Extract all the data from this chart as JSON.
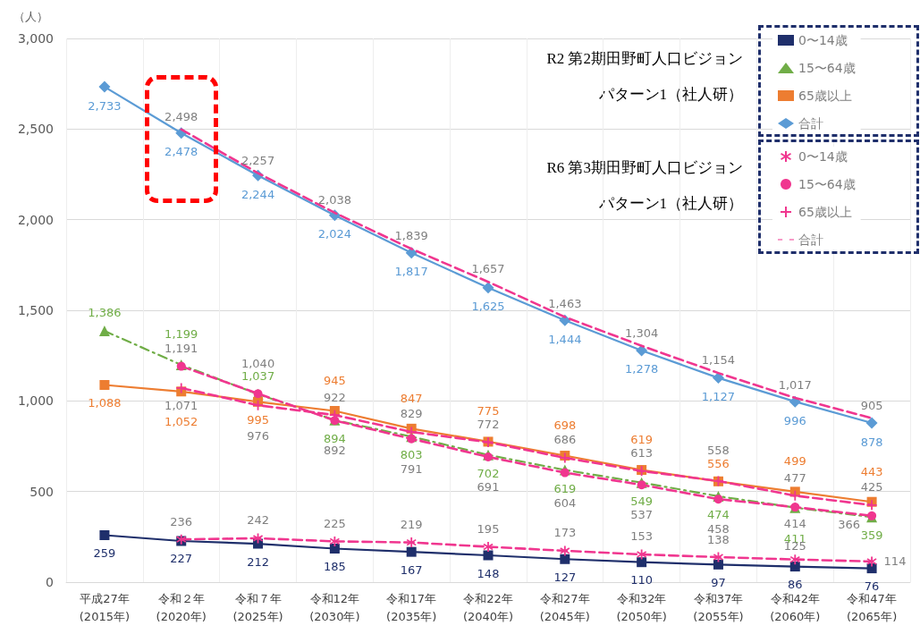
{
  "chart_data": {
    "type": "line",
    "ylabel": "（人）",
    "categories": [
      "平成27年\n(2015年)",
      "令和２年\n(2020年)",
      "令和７年\n(2025年)",
      "令和12年\n(2030年)",
      "令和17年\n(2035年)",
      "令和22年\n(2040年)",
      "令和27年\n(2045年)",
      "令和32年\n(2050年)",
      "令和37年\n(2055年)",
      "令和42年\n(2060年)",
      "令和47年\n(2065年)"
    ],
    "series": [
      {
        "name": "0〜14歳",
        "color": "#1f2f6b",
        "marker": "square",
        "line_style": "solid",
        "values": [
          259,
          227,
          212,
          185,
          167,
          148,
          127,
          110,
          97,
          86,
          76
        ],
        "value_labels": [
          "259",
          "227",
          "212",
          "185",
          "167",
          "148",
          "127",
          "110",
          "97",
          "86",
          "76"
        ]
      },
      {
        "name": "15〜64歳",
        "color": "#70ad47",
        "marker": "triangle",
        "line_style": "dashed",
        "values": [
          1386,
          1199,
          1037,
          894,
          803,
          702,
          619,
          549,
          474,
          411,
          359
        ],
        "value_labels": [
          "1,386",
          "1,199",
          "1,037",
          "894",
          "803",
          "702",
          "619",
          "549",
          "474",
          "411",
          "359"
        ]
      },
      {
        "name": "65歳以上",
        "color": "#ed7d31",
        "marker": "square",
        "line_style": "solid",
        "values": [
          1088,
          1052,
          995,
          945,
          847,
          775,
          698,
          619,
          556,
          499,
          443
        ],
        "value_labels": [
          "1,088",
          "1,052",
          "995",
          "945",
          "847",
          "775",
          "698",
          "619",
          "556",
          "499",
          "443"
        ]
      },
      {
        "name": "合計",
        "color": "#5b9bd5",
        "marker": "diamond",
        "line_style": "solid",
        "values": [
          2733,
          2478,
          2244,
          2024,
          1817,
          1625,
          1444,
          1278,
          1127,
          996,
          878
        ],
        "value_labels": [
          "2,733",
          "2,478",
          "2,244",
          "2,024",
          "1,817",
          "1,625",
          "1,444",
          "1,278",
          "1,127",
          "996",
          "878"
        ]
      },
      {
        "name": "0〜14歳",
        "color": "#f0368f",
        "marker": "star",
        "line_style": "dashed",
        "values": [
          null,
          236,
          242,
          225,
          219,
          195,
          173,
          153,
          138,
          125,
          114
        ],
        "value_labels": [
          null,
          "236",
          "242",
          "225",
          "219",
          "195",
          "173",
          "153",
          "138",
          "125",
          "114"
        ]
      },
      {
        "name": "15〜64歳",
        "color": "#f0368f",
        "marker": "circle",
        "line_style": "dashed",
        "values": [
          null,
          1191,
          1040,
          892,
          791,
          691,
          604,
          537,
          458,
          414,
          366
        ],
        "value_labels": [
          null,
          "1,191",
          "1,040",
          "892",
          "791",
          "691",
          "604",
          "537",
          "458",
          "414",
          "366"
        ]
      },
      {
        "name": "65歳以上",
        "color": "#f0368f",
        "marker": "cross",
        "line_style": "dashed",
        "values": [
          null,
          1071,
          976,
          922,
          829,
          772,
          686,
          613,
          558,
          477,
          425
        ],
        "value_labels": [
          null,
          "1,071",
          "976",
          "922",
          "829",
          "772",
          "686",
          "613",
          "558",
          "477",
          "425"
        ]
      },
      {
        "name": "合計",
        "color": "#f0368f",
        "marker": "none",
        "line_style": "dashed",
        "values": [
          null,
          2498,
          2257,
          2038,
          1839,
          1657,
          1463,
          1304,
          1154,
          1017,
          905
        ],
        "value_labels": [
          null,
          "2,498",
          "2,257",
          "2,038",
          "1,839",
          "1,657",
          "1,463",
          "1,304",
          "1,154",
          "1,017",
          "905"
        ]
      }
    ],
    "ylim": [
      0,
      3000
    ],
    "yticks": [
      0,
      500,
      {
        "value": 1000,
        "label": "1,000"
      },
      {
        "value": 1500,
        "label": "1,500"
      },
      {
        "value": 2000,
        "label": "2,000"
      },
      {
        "value": 2500,
        "label": "2,500"
      },
      {
        "value": 3000,
        "label": "3,000"
      }
    ],
    "grid": true,
    "legend": "top right",
    "annotations": [
      "R2 第2期田野町人口ビジョン",
      "パターン1（社人研）",
      "R6 第3期田野町人口ビジョン",
      "パターン1（社人研）"
    ]
  }
}
